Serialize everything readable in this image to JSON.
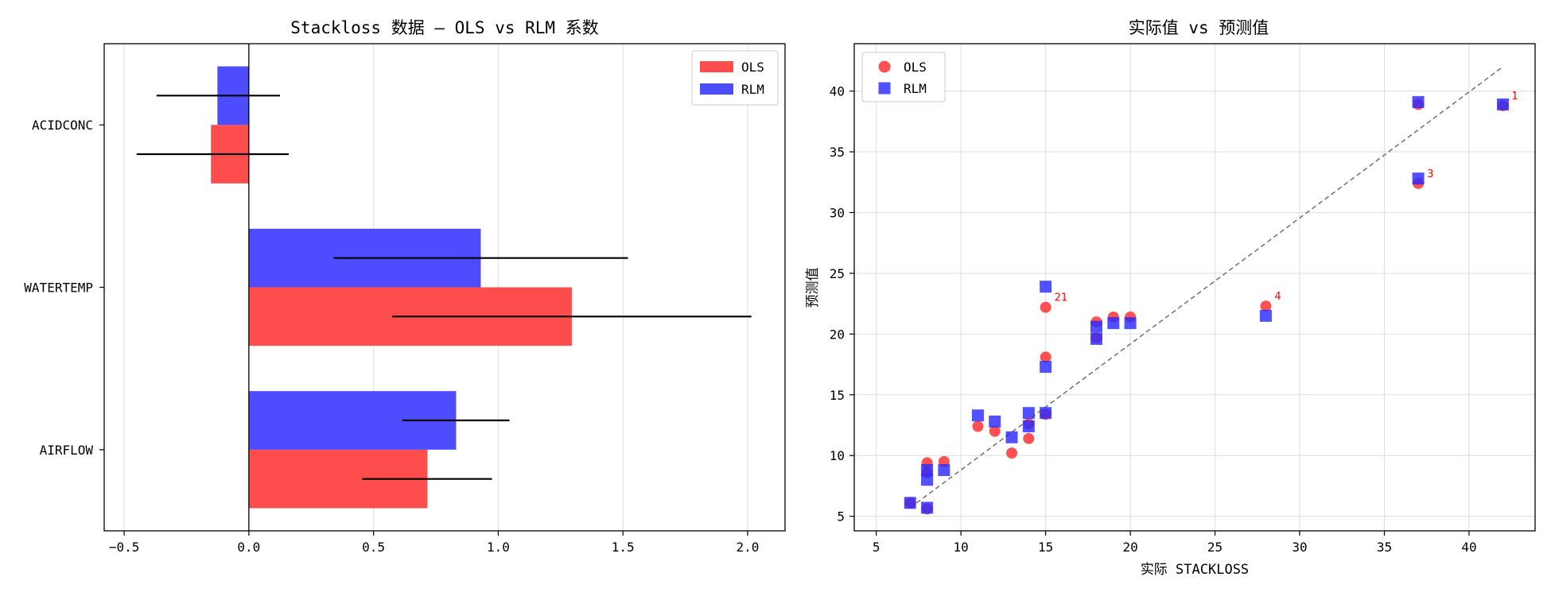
{
  "chart_data": [
    {
      "type": "bar",
      "orientation": "horizontal",
      "title": "Stackloss 数据 — OLS vs RLM 系数",
      "categories": [
        "ACIDCONC",
        "WATERTEMP",
        "AIRFLOW"
      ],
      "series": [
        {
          "name": "OLS",
          "color": "#ff4d4d",
          "values": [
            -0.152,
            1.295,
            0.716
          ],
          "err_low": [
            -0.45,
            0.575,
            0.455
          ],
          "err_high": [
            0.16,
            2.015,
            0.975
          ]
        },
        {
          "name": "RLM",
          "color": "#4d4dff",
          "values": [
            -0.126,
            0.93,
            0.831
          ],
          "err_low": [
            -0.37,
            0.34,
            0.615
          ],
          "err_high": [
            0.125,
            1.52,
            1.045
          ]
        }
      ],
      "xlim": [
        -0.58,
        2.15
      ],
      "xticks": [
        -0.5,
        0.0,
        0.5,
        1.0,
        1.5,
        2.0
      ],
      "xtick_labels": [
        "−0.5",
        "0.0",
        "0.5",
        "1.0",
        "1.5",
        "2.0"
      ],
      "grid": true,
      "legend": "top-right",
      "zero_line": 0
    },
    {
      "type": "scatter",
      "title": "实际值 vs 预测值",
      "xlabel": "实际 STACKLOSS",
      "ylabel": "预测值",
      "xlim": [
        3.7,
        43.9
      ],
      "ylim": [
        3.8,
        43.9
      ],
      "xticks": [
        5,
        10,
        15,
        20,
        25,
        30,
        35,
        40
      ],
      "yticks": [
        5,
        10,
        15,
        20,
        25,
        30,
        35,
        40
      ],
      "grid": true,
      "legend": "top-left",
      "reference_line": {
        "from": [
          7,
          5.7
        ],
        "to": [
          42,
          42
        ]
      },
      "x": [
        42,
        37,
        37,
        28,
        18,
        18,
        19,
        20,
        15,
        14,
        14,
        13,
        11,
        12,
        8,
        7,
        8,
        8,
        9,
        15,
        15
      ],
      "series": [
        {
          "name": "OLS",
          "color": "#ff2b2b",
          "marker": "circle",
          "y": [
            38.8,
            38.9,
            32.4,
            22.3,
            19.7,
            21.0,
            21.4,
            21.4,
            18.1,
            12.6,
            11.4,
            10.2,
            12.4,
            12.0,
            5.6,
            6.1,
            9.4,
            8.6,
            9.5,
            13.4,
            22.2
          ]
        },
        {
          "name": "RLM",
          "color": "#2b2bff",
          "marker": "square",
          "y": [
            38.9,
            39.1,
            32.8,
            21.5,
            19.6,
            20.6,
            20.9,
            20.9,
            17.3,
            13.5,
            12.4,
            11.5,
            13.3,
            12.8,
            5.7,
            6.1,
            8.0,
            8.8,
            8.8,
            13.5,
            23.9
          ]
        }
      ],
      "annotations": [
        {
          "text": "1",
          "x": 42,
          "y": 38.8
        },
        {
          "text": "3",
          "x": 37,
          "y": 32.4
        },
        {
          "text": "4",
          "x": 28,
          "y": 22.3
        },
        {
          "text": "21",
          "x": 15,
          "y": 22.2
        }
      ]
    }
  ]
}
